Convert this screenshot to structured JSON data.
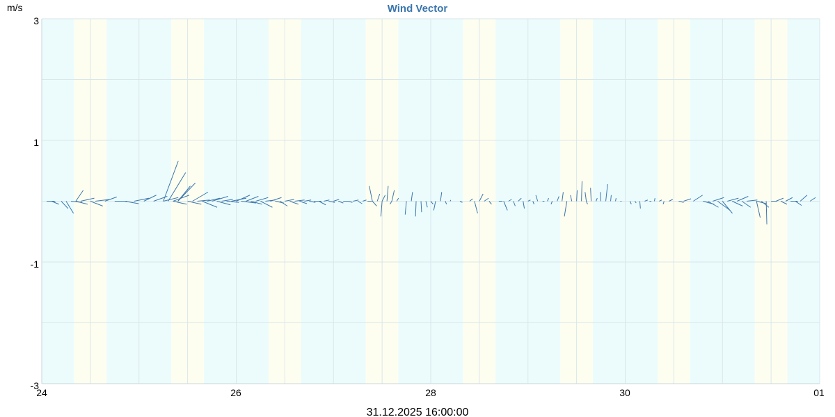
{
  "chart_data": {
    "type": "vector",
    "title": "Wind Vector",
    "ylabel": "m/s",
    "ylim": [
      -3,
      3
    ],
    "y_ticks": [
      "3",
      "1",
      "-1",
      "-3"
    ],
    "x_ticks": [
      "24",
      "26",
      "28",
      "30",
      "01"
    ],
    "x_range_days": [
      24,
      32
    ],
    "timestamp": "31.12.2025 16:00:00",
    "colors": {
      "vector": "#3a76ad",
      "title": "#3a76ad",
      "band_a": "#ecfcfd",
      "band_b": "#fefef0",
      "grid": "#d9e6ea"
    },
    "bands": [
      {
        "from": 24.0,
        "to": 24.333,
        "color": "band_a"
      },
      {
        "from": 24.333,
        "to": 24.667,
        "color": "band_b"
      },
      {
        "from": 24.667,
        "to": 25.333,
        "color": "band_a"
      },
      {
        "from": 25.333,
        "to": 25.667,
        "color": "band_b"
      },
      {
        "from": 25.667,
        "to": 26.333,
        "color": "band_a"
      },
      {
        "from": 26.333,
        "to": 26.667,
        "color": "band_b"
      },
      {
        "from": 26.667,
        "to": 27.333,
        "color": "band_a"
      },
      {
        "from": 27.333,
        "to": 27.667,
        "color": "band_b"
      },
      {
        "from": 27.667,
        "to": 28.333,
        "color": "band_a"
      },
      {
        "from": 28.333,
        "to": 28.667,
        "color": "band_b"
      },
      {
        "from": 28.667,
        "to": 29.333,
        "color": "band_a"
      },
      {
        "from": 29.333,
        "to": 29.667,
        "color": "band_b"
      },
      {
        "from": 29.667,
        "to": 30.333,
        "color": "band_a"
      },
      {
        "from": 30.333,
        "to": 30.667,
        "color": "band_b"
      },
      {
        "from": 30.667,
        "to": 31.333,
        "color": "band_a"
      },
      {
        "from": 31.333,
        "to": 31.667,
        "color": "band_b"
      },
      {
        "from": 31.667,
        "to": 32.0,
        "color": "band_a"
      }
    ],
    "vectors": [
      {
        "x": 24.05,
        "u": 0.7,
        "v": 0.0
      },
      {
        "x": 24.1,
        "u": 0.6,
        "v": -0.05
      },
      {
        "x": 24.2,
        "u": 0.55,
        "v": -0.12
      },
      {
        "x": 24.25,
        "u": 0.6,
        "v": -0.2
      },
      {
        "x": 24.3,
        "u": 0.9,
        "v": -0.02
      },
      {
        "x": 24.35,
        "u": 0.95,
        "v": -0.05
      },
      {
        "x": 24.35,
        "u": 0.6,
        "v": 0.18
      },
      {
        "x": 24.4,
        "u": 1.1,
        "v": 0.05
      },
      {
        "x": 24.5,
        "u": 1.0,
        "v": -0.08
      },
      {
        "x": 24.55,
        "u": 1.2,
        "v": 0.03
      },
      {
        "x": 24.65,
        "u": 0.95,
        "v": 0.07
      },
      {
        "x": 24.75,
        "u": 1.0,
        "v": 0.0
      },
      {
        "x": 24.85,
        "u": 1.15,
        "v": -0.04
      },
      {
        "x": 24.95,
        "u": 1.2,
        "v": 0.05
      },
      {
        "x": 25.05,
        "u": 1.0,
        "v": 0.1
      },
      {
        "x": 25.15,
        "u": 1.1,
        "v": 0.08
      },
      {
        "x": 25.25,
        "u": 1.2,
        "v": 0.66
      },
      {
        "x": 25.25,
        "u": 1.2,
        "v": 0.06
      },
      {
        "x": 25.3,
        "u": 1.4,
        "v": 0.47
      },
      {
        "x": 25.35,
        "u": 1.3,
        "v": 0.1
      },
      {
        "x": 25.35,
        "u": 1.1,
        "v": -0.05
      },
      {
        "x": 25.4,
        "u": 1.0,
        "v": 0.25
      },
      {
        "x": 25.4,
        "u": 1.4,
        "v": 0.3
      },
      {
        "x": 25.5,
        "u": 1.1,
        "v": -0.05
      },
      {
        "x": 25.55,
        "u": 1.25,
        "v": 0.15
      },
      {
        "x": 25.6,
        "u": 1.0,
        "v": 0.02
      },
      {
        "x": 25.65,
        "u": 1.2,
        "v": -0.1
      },
      {
        "x": 25.7,
        "u": 1.05,
        "v": 0.05
      },
      {
        "x": 25.75,
        "u": 1.3,
        "v": 0.08
      },
      {
        "x": 25.8,
        "u": 1.1,
        "v": -0.06
      },
      {
        "x": 25.85,
        "u": 0.9,
        "v": 0.03
      },
      {
        "x": 25.9,
        "u": 1.0,
        "v": -0.02
      },
      {
        "x": 25.95,
        "u": 1.2,
        "v": 0.05
      },
      {
        "x": 26.0,
        "u": 1.1,
        "v": 0.1
      },
      {
        "x": 26.05,
        "u": 1.2,
        "v": -0.03
      },
      {
        "x": 26.1,
        "u": 1.0,
        "v": 0.08
      },
      {
        "x": 26.15,
        "u": 0.9,
        "v": -0.05
      },
      {
        "x": 26.2,
        "u": 1.0,
        "v": 0.06
      },
      {
        "x": 26.25,
        "u": 0.95,
        "v": -0.1
      },
      {
        "x": 26.3,
        "u": 0.8,
        "v": 0.02
      },
      {
        "x": 26.35,
        "u": 0.9,
        "v": 0.06
      },
      {
        "x": 26.4,
        "u": 0.7,
        "v": -0.03
      },
      {
        "x": 26.45,
        "u": 0.6,
        "v": -0.08
      },
      {
        "x": 26.5,
        "u": 0.75,
        "v": 0.03
      },
      {
        "x": 26.55,
        "u": 0.7,
        "v": -0.05
      },
      {
        "x": 26.6,
        "u": 0.8,
        "v": 0.02
      },
      {
        "x": 26.65,
        "u": 0.6,
        "v": -0.04
      },
      {
        "x": 26.7,
        "u": 0.55,
        "v": 0.02
      },
      {
        "x": 26.75,
        "u": 0.5,
        "v": -0.02
      },
      {
        "x": 26.8,
        "u": 0.6,
        "v": 0.0
      },
      {
        "x": 26.85,
        "u": 0.55,
        "v": -0.06
      },
      {
        "x": 26.9,
        "u": 0.45,
        "v": 0.02
      },
      {
        "x": 26.95,
        "u": 0.5,
        "v": -0.02
      },
      {
        "x": 27.0,
        "u": 0.45,
        "v": 0.03
      },
      {
        "x": 27.05,
        "u": 0.4,
        "v": -0.03
      },
      {
        "x": 27.1,
        "u": 0.4,
        "v": 0.0
      },
      {
        "x": 27.15,
        "u": 0.35,
        "v": -0.02
      },
      {
        "x": 27.2,
        "u": 0.45,
        "v": 0.02
      },
      {
        "x": 27.25,
        "u": 0.35,
        "v": -0.04
      },
      {
        "x": 27.3,
        "u": 0.3,
        "v": 0.02
      },
      {
        "x": 27.35,
        "u": 0.35,
        "v": 0.0
      },
      {
        "x": 27.4,
        "u": -0.25,
        "v": 0.25
      },
      {
        "x": 27.4,
        "u": 0.35,
        "v": -0.08
      },
      {
        "x": 27.45,
        "u": 0.2,
        "v": 0.12
      },
      {
        "x": 27.5,
        "u": -0.1,
        "v": -0.25
      },
      {
        "x": 27.5,
        "u": 0.25,
        "v": 0.1
      },
      {
        "x": 27.55,
        "u": 0.1,
        "v": 0.25
      },
      {
        "x": 27.6,
        "u": 0.2,
        "v": 0.18
      },
      {
        "x": 27.6,
        "u": -0.15,
        "v": -0.05
      },
      {
        "x": 27.65,
        "u": 0.15,
        "v": 0.05
      },
      {
        "x": 27.75,
        "u": -0.1,
        "v": -0.22
      },
      {
        "x": 27.8,
        "u": 0.1,
        "v": 0.15
      },
      {
        "x": 27.85,
        "u": -0.05,
        "v": -0.25
      },
      {
        "x": 27.9,
        "u": 0.05,
        "v": -0.18
      },
      {
        "x": 27.95,
        "u": 0.12,
        "v": -0.1
      },
      {
        "x": 28.0,
        "u": 0.2,
        "v": -0.05
      },
      {
        "x": 28.05,
        "u": -0.15,
        "v": -0.15
      },
      {
        "x": 28.1,
        "u": 0.1,
        "v": 0.15
      },
      {
        "x": 28.15,
        "u": 0.1,
        "v": -0.05
      },
      {
        "x": 28.2,
        "u": 0.05,
        "v": 0.02
      },
      {
        "x": 28.3,
        "u": 0.2,
        "v": -0.02
      },
      {
        "x": 28.4,
        "u": 0.25,
        "v": 0.04
      },
      {
        "x": 28.45,
        "u": 0.25,
        "v": -0.2
      },
      {
        "x": 28.5,
        "u": 0.3,
        "v": 0.12
      },
      {
        "x": 28.55,
        "u": 0.35,
        "v": 0.05
      },
      {
        "x": 28.6,
        "u": 0.2,
        "v": -0.05
      },
      {
        "x": 28.7,
        "u": 0.3,
        "v": 0.0
      },
      {
        "x": 28.75,
        "u": 0.3,
        "v": -0.15
      },
      {
        "x": 28.8,
        "u": 0.25,
        "v": 0.03
      },
      {
        "x": 28.85,
        "u": 0.15,
        "v": -0.08
      },
      {
        "x": 28.9,
        "u": 0.25,
        "v": 0.05
      },
      {
        "x": 28.95,
        "u": 0.1,
        "v": -0.12
      },
      {
        "x": 29.0,
        "u": 0.2,
        "v": 0.02
      },
      {
        "x": 29.05,
        "u": 0.1,
        "v": -0.05
      },
      {
        "x": 29.1,
        "u": -0.15,
        "v": 0.1
      },
      {
        "x": 29.15,
        "u": 0.15,
        "v": 0.0
      },
      {
        "x": 29.2,
        "u": 0.1,
        "v": 0.05
      },
      {
        "x": 29.25,
        "u": -0.1,
        "v": -0.05
      },
      {
        "x": 29.3,
        "u": 0.15,
        "v": 0.08
      },
      {
        "x": 29.35,
        "u": 0.1,
        "v": 0.15
      },
      {
        "x": 29.4,
        "u": -0.2,
        "v": -0.25
      },
      {
        "x": 29.45,
        "u": -0.1,
        "v": 0.1
      },
      {
        "x": 29.5,
        "u": 0.05,
        "v": 0.18
      },
      {
        "x": 29.55,
        "u": 0.05,
        "v": 0.33
      },
      {
        "x": 29.6,
        "u": -0.1,
        "v": 0.15
      },
      {
        "x": 29.6,
        "u": 0.1,
        "v": -0.05
      },
      {
        "x": 29.65,
        "u": -0.05,
        "v": 0.22
      },
      {
        "x": 29.7,
        "u": 0.1,
        "v": 0.05
      },
      {
        "x": 29.75,
        "u": -0.05,
        "v": 0.15
      },
      {
        "x": 29.8,
        "u": 0.15,
        "v": 0.28
      },
      {
        "x": 29.85,
        "u": 0.05,
        "v": 0.1
      },
      {
        "x": 29.9,
        "u": 0.05,
        "v": 0.05
      },
      {
        "x": 29.95,
        "u": 0.1,
        "v": 0.0
      },
      {
        "x": 30.05,
        "u": 0.1,
        "v": -0.05
      },
      {
        "x": 30.1,
        "u": 0.1,
        "v": -0.03
      },
      {
        "x": 30.15,
        "u": 0.05,
        "v": -0.12
      },
      {
        "x": 30.2,
        "u": 0.25,
        "v": 0.02
      },
      {
        "x": 30.25,
        "u": 0.15,
        "v": 0.0
      },
      {
        "x": 30.3,
        "u": 0.05,
        "v": 0.05
      },
      {
        "x": 30.35,
        "u": 0.2,
        "v": 0.02
      },
      {
        "x": 30.4,
        "u": -0.08,
        "v": -0.05
      },
      {
        "x": 30.45,
        "u": 0.3,
        "v": 0.03
      },
      {
        "x": 30.55,
        "u": 0.4,
        "v": -0.02
      },
      {
        "x": 30.6,
        "u": 0.6,
        "v": 0.04
      },
      {
        "x": 30.7,
        "u": 0.75,
        "v": 0.1
      },
      {
        "x": 30.8,
        "u": 0.9,
        "v": -0.05
      },
      {
        "x": 30.85,
        "u": 0.85,
        "v": -0.1
      },
      {
        "x": 30.9,
        "u": 0.9,
        "v": 0.06
      },
      {
        "x": 30.95,
        "u": 1.0,
        "v": -0.15
      },
      {
        "x": 31.0,
        "u": 0.8,
        "v": -0.2
      },
      {
        "x": 31.05,
        "u": 0.9,
        "v": 0.05
      },
      {
        "x": 31.1,
        "u": 0.85,
        "v": -0.08
      },
      {
        "x": 31.15,
        "u": 0.9,
        "v": 0.08
      },
      {
        "x": 31.2,
        "u": 0.7,
        "v": -0.1
      },
      {
        "x": 31.25,
        "u": 0.85,
        "v": 0.02
      },
      {
        "x": 31.35,
        "u": 0.3,
        "v": -0.27
      },
      {
        "x": 31.35,
        "u": 0.8,
        "v": -0.04
      },
      {
        "x": 31.4,
        "u": 0.6,
        "v": -0.1
      },
      {
        "x": 31.45,
        "u": 0.05,
        "v": -0.38
      },
      {
        "x": 31.5,
        "u": 0.5,
        "v": 0.0
      },
      {
        "x": 31.55,
        "u": 0.6,
        "v": 0.05
      },
      {
        "x": 31.6,
        "u": 0.5,
        "v": -0.05
      },
      {
        "x": 31.65,
        "u": 0.55,
        "v": 0.06
      },
      {
        "x": 31.7,
        "u": 0.6,
        "v": 0.0
      },
      {
        "x": 31.75,
        "u": 0.5,
        "v": -0.07
      },
      {
        "x": 31.8,
        "u": 0.55,
        "v": 0.1
      },
      {
        "x": 31.9,
        "u": 0.45,
        "v": 0.06
      }
    ]
  }
}
